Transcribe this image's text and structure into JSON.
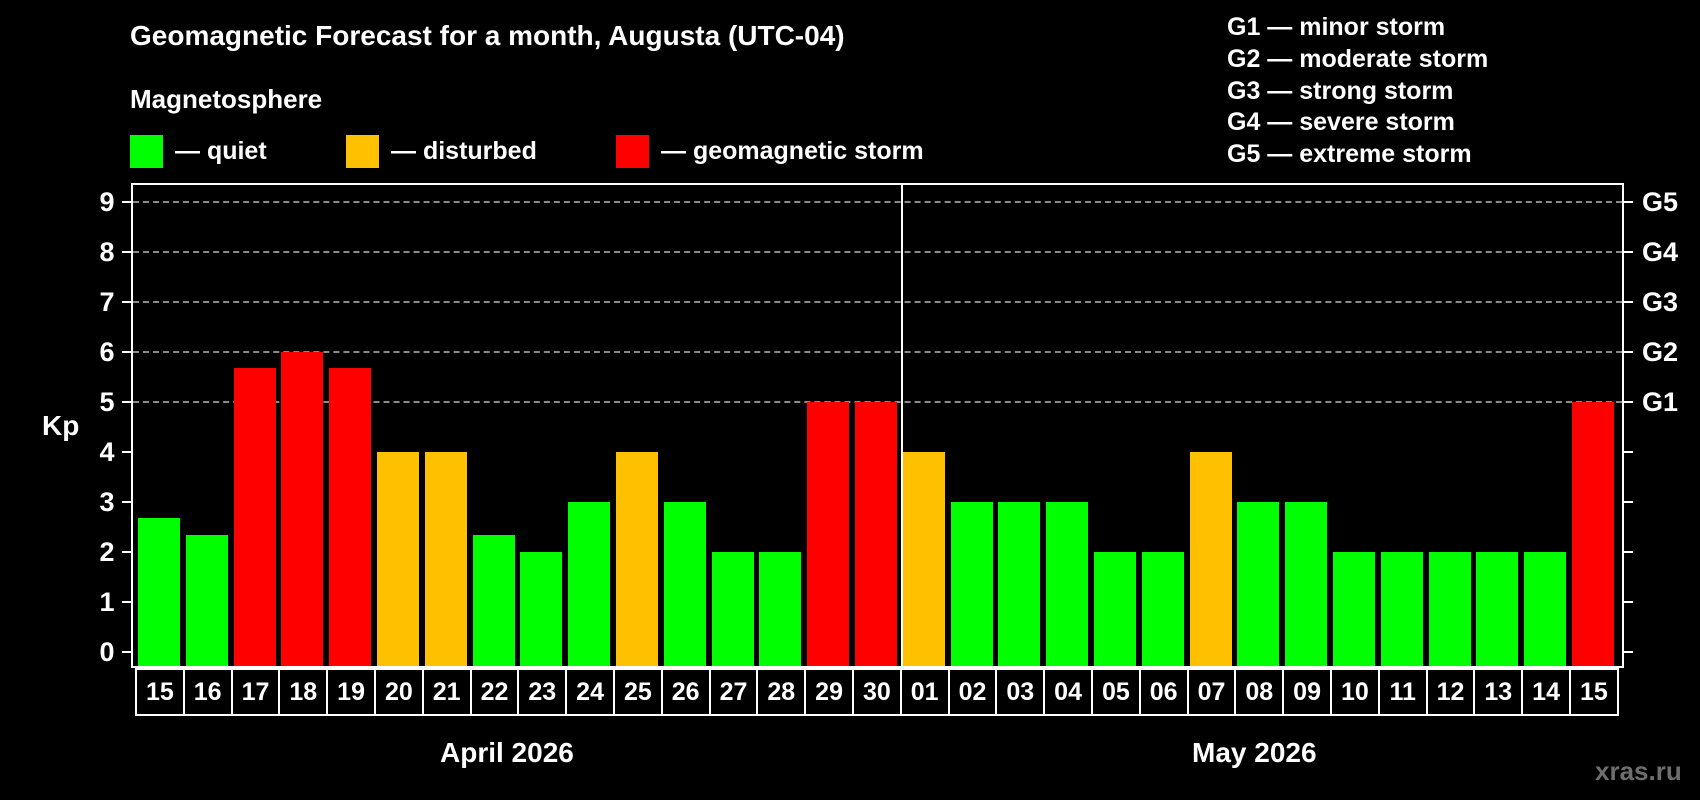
{
  "header": {
    "title": "Geomagnetic Forecast for a month, Augusta (UTC-04)",
    "subtitle": "Magnetosphere"
  },
  "legend": [
    {
      "label": "— quiet",
      "color": "#00ff00"
    },
    {
      "label": "— disturbed",
      "color": "#ffc000"
    },
    {
      "label": "— geomagnetic storm",
      "color": "#ff0000"
    }
  ],
  "storm_scale": [
    "G1 — minor storm",
    "G2 — moderate storm",
    "G3 — strong storm",
    "G4 — severe storm",
    "G5 — extreme storm"
  ],
  "axis": {
    "ylabel": "Kp",
    "yticks": [
      "0",
      "1",
      "2",
      "3",
      "4",
      "5",
      "6",
      "7",
      "8",
      "9"
    ],
    "gticks": [
      {
        "kp": 5,
        "label": "G1"
      },
      {
        "kp": 6,
        "label": "G2"
      },
      {
        "kp": 7,
        "label": "G3"
      },
      {
        "kp": 8,
        "label": "G4"
      },
      {
        "kp": 9,
        "label": "G5"
      }
    ]
  },
  "months": [
    "April 2026",
    "May 2026"
  ],
  "watermark": "xras.ru",
  "colors": {
    "quiet": "#00ff00",
    "disturbed": "#ffc000",
    "storm": "#ff0000"
  },
  "chart_data": {
    "type": "bar",
    "title": "Geomagnetic Forecast for a month, Augusta (UTC-04)",
    "subtitle": "Magnetosphere",
    "xlabel": "",
    "ylabel": "Kp",
    "ylim": [
      0,
      9
    ],
    "grid": "dashed horizontal at Kp 5-9",
    "secondary_y_labels": {
      "5": "G1",
      "6": "G2",
      "7": "G3",
      "8": "G4",
      "9": "G5"
    },
    "month_groups": [
      {
        "label": "April 2026",
        "days": [
          "15",
          "16",
          "17",
          "18",
          "19",
          "20",
          "21",
          "22",
          "23",
          "24",
          "25",
          "26",
          "27",
          "28",
          "29",
          "30"
        ]
      },
      {
        "label": "May 2026",
        "days": [
          "01",
          "02",
          "03",
          "04",
          "05",
          "06",
          "07",
          "08",
          "09",
          "10",
          "11",
          "12",
          "13",
          "14",
          "15"
        ]
      }
    ],
    "categories": [
      "15",
      "16",
      "17",
      "18",
      "19",
      "20",
      "21",
      "22",
      "23",
      "24",
      "25",
      "26",
      "27",
      "28",
      "29",
      "30",
      "01",
      "02",
      "03",
      "04",
      "05",
      "06",
      "07",
      "08",
      "09",
      "10",
      "11",
      "12",
      "13",
      "14",
      "15"
    ],
    "values": [
      2.67,
      2.33,
      5.67,
      6,
      5.67,
      4,
      4,
      2.33,
      2,
      3,
      4,
      3,
      2,
      2,
      5,
      5,
      4,
      3,
      3,
      3,
      2,
      2,
      4,
      3,
      3,
      2,
      2,
      2,
      2,
      2,
      5
    ],
    "status": [
      "quiet",
      "quiet",
      "storm",
      "storm",
      "storm",
      "disturbed",
      "disturbed",
      "quiet",
      "quiet",
      "quiet",
      "disturbed",
      "quiet",
      "quiet",
      "quiet",
      "storm",
      "storm",
      "disturbed",
      "quiet",
      "quiet",
      "quiet",
      "quiet",
      "quiet",
      "disturbed",
      "quiet",
      "quiet",
      "quiet",
      "quiet",
      "quiet",
      "quiet",
      "quiet",
      "storm"
    ],
    "legend": [
      "quiet",
      "disturbed",
      "geomagnetic storm"
    ]
  }
}
